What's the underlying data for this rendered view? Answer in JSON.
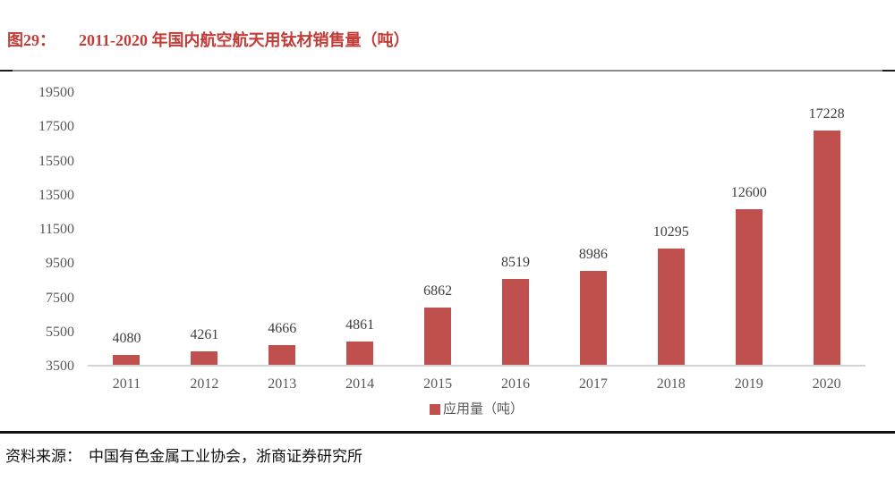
{
  "figure": {
    "label": "图29：",
    "title": "2011-2020 年国内航空航天用钛材销售量（吨）"
  },
  "footer": {
    "source_label": "资料来源：",
    "source_text": "中国有色金属工业协会，浙商证券研究所"
  },
  "colors": {
    "bar": "#C0504D",
    "title_red": "#C23C38",
    "axis_text": "#595959",
    "value_label": "#3F3F3F",
    "baseline": "#D4D4D4"
  },
  "chart_data": {
    "type": "bar",
    "title": "2011-2020 年国内航空航天用钛材销售量（吨）",
    "categories": [
      "2011",
      "2012",
      "2013",
      "2014",
      "2015",
      "2016",
      "2017",
      "2018",
      "2019",
      "2020"
    ],
    "values": [
      4080,
      4261,
      4666,
      4861,
      6862,
      8519,
      8986,
      10295,
      12600,
      17228
    ],
    "series_name": "应用量（吨）",
    "xlabel": "",
    "ylabel": "",
    "ylim": [
      3500,
      19500
    ],
    "yticks": [
      3500,
      5500,
      7500,
      9500,
      11500,
      13500,
      15500,
      17500,
      19500
    ],
    "grid": false,
    "value_labels": true,
    "legend_position": "bottom"
  }
}
